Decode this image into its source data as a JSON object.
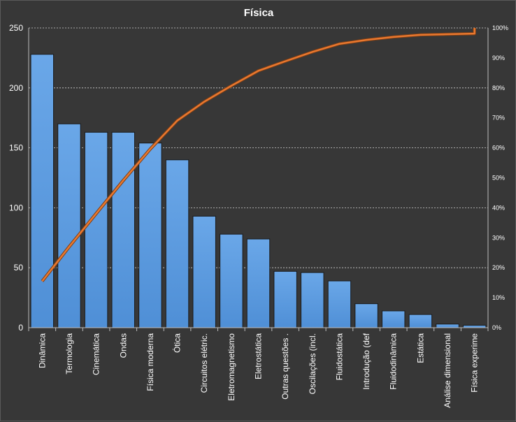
{
  "chart_data": {
    "type": "bar",
    "title": "Física",
    "categories": [
      "Dinâmica",
      "Termologia",
      "Cinemática",
      "Ondas",
      "Física moderna",
      "Ótica",
      "Circuitos elétric.",
      "Eletromagnetismo",
      "Eletrostática",
      "Outras questões .",
      "Oscilações (incl.",
      "Fluidostática",
      "Introdução (def",
      "Fluidodinâmica",
      "Estática",
      "Análise dimensional",
      "Física experime"
    ],
    "values": [
      228,
      170,
      163,
      163,
      154,
      140,
      93,
      78,
      74,
      47,
      46,
      39,
      20,
      14,
      11,
      3,
      2
    ],
    "cumulative_percent": [
      15.5,
      27.0,
      38.1,
      49.1,
      59.6,
      69.1,
      75.4,
      80.7,
      85.7,
      88.9,
      92.0,
      94.7,
      96.0,
      97.0,
      97.7,
      97.9,
      98.1
    ],
    "ylim": [
      0,
      250
    ],
    "yticks": [
      0,
      50,
      100,
      150,
      200,
      250
    ],
    "y2lim": [
      0,
      100
    ],
    "y2ticks": [
      "0%",
      "10%",
      "20%",
      "30%",
      "40%",
      "50%",
      "60%",
      "70%",
      "80%",
      "90%",
      "100%"
    ],
    "grid": true,
    "legend": "none",
    "colors": {
      "bar": "#4f8fd6",
      "bar_top": "#6aa7e8",
      "line": "#e9782f",
      "grid": "#cfcfcf"
    }
  }
}
